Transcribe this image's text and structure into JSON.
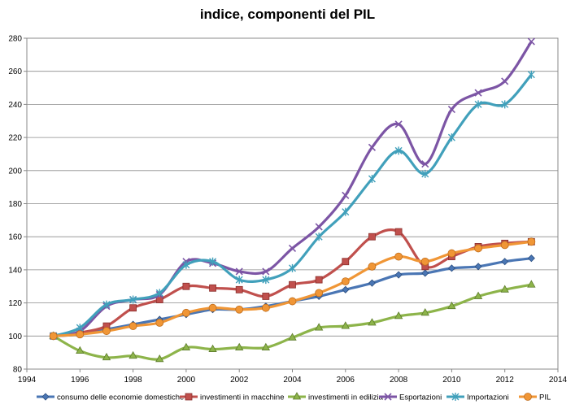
{
  "chart_data": {
    "type": "line",
    "title": "indice, componenti del PIL",
    "xlabel": "",
    "ylabel": "",
    "xlim": [
      1994,
      2014
    ],
    "ylim": [
      80,
      280
    ],
    "x_ticks": [
      1994,
      1996,
      1998,
      2000,
      2002,
      2004,
      2006,
      2008,
      2010,
      2012,
      2014
    ],
    "y_ticks": [
      80,
      100,
      120,
      140,
      160,
      180,
      200,
      220,
      240,
      260,
      280
    ],
    "grid": "horizontal",
    "legend_position": "bottom",
    "x": [
      1995,
      1996,
      1997,
      1998,
      1999,
      2000,
      2001,
      2002,
      2003,
      2004,
      2005,
      2006,
      2007,
      2008,
      2009,
      2010,
      2011,
      2012,
      2013
    ],
    "series": [
      {
        "name": "consumo delle economie domestiche",
        "color": "#4a76b4",
        "marker": "diamond",
        "values": [
          100,
          101,
          104,
          107,
          110,
          113,
          116,
          116,
          118,
          121,
          124,
          128,
          132,
          137,
          138,
          141,
          142,
          145,
          147
        ]
      },
      {
        "name": "investimenti in macchine",
        "color": "#c0504d",
        "marker": "square",
        "values": [
          100,
          102,
          106,
          117,
          122,
          130,
          129,
          128,
          124,
          131,
          134,
          145,
          160,
          163,
          142,
          148,
          154,
          156,
          157
        ]
      },
      {
        "name": "investimenti in edilizia",
        "color": "#8db44a",
        "marker": "triangle",
        "values": [
          100,
          91,
          87,
          88,
          86,
          93,
          92,
          93,
          93,
          99,
          105,
          106,
          108,
          112,
          114,
          118,
          124,
          128,
          131
        ]
      },
      {
        "name": "Esportazioni",
        "color": "#7c55a5",
        "marker": "x",
        "values": [
          100,
          103,
          118,
          122,
          125,
          145,
          144,
          139,
          139,
          153,
          166,
          185,
          214,
          228,
          204,
          237,
          247,
          254,
          278
        ]
      },
      {
        "name": "Importazioni",
        "color": "#41a0bb",
        "marker": "star",
        "values": [
          100,
          105,
          119,
          122,
          126,
          143,
          145,
          134,
          134,
          141,
          160,
          175,
          195,
          212,
          198,
          220,
          240,
          240,
          258
        ]
      },
      {
        "name": "PIL",
        "color": "#f09636",
        "marker": "circle",
        "values": [
          100,
          101,
          103,
          106,
          108,
          114,
          117,
          116,
          117,
          121,
          126,
          133,
          142,
          148,
          145,
          150,
          153,
          155,
          157
        ]
      }
    ]
  }
}
